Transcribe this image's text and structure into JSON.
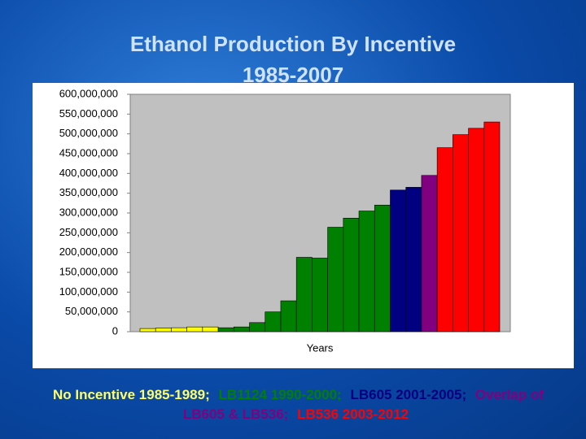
{
  "chart_data": {
    "type": "bar",
    "title": "Ethanol Production By Incentive",
    "subtitle": "1985-2007",
    "x_label": "Years",
    "categories": [
      null,
      null,
      null,
      null,
      null,
      null,
      null,
      null,
      null,
      null,
      null,
      null,
      null,
      null,
      null,
      null,
      null,
      null,
      null,
      null,
      null,
      null,
      null
    ],
    "values": [
      8000000,
      9000000,
      10000000,
      12000000,
      12000000,
      10000000,
      12000000,
      23000000,
      50000000,
      78000000,
      188000000,
      186000000,
      264000000,
      287000000,
      305000000,
      320000000,
      358000000,
      365000000,
      395000000,
      465000000,
      498000000,
      514000000,
      530000000
    ],
    "colors": [
      "#ffff00",
      "#ffff00",
      "#ffff00",
      "#ffff00",
      "#ffff00",
      "#008000",
      "#008000",
      "#008000",
      "#008000",
      "#008000",
      "#008000",
      "#008000",
      "#008000",
      "#008000",
      "#008000",
      "#008000",
      "#000080",
      "#000080",
      "#800080",
      "#ff0000",
      "#ff0000",
      "#ff0000",
      "#ff0000"
    ],
    "ylim": [
      0,
      600000000
    ],
    "yticks": [
      0,
      {
        "value": 50000000,
        "label": "50,000,000"
      },
      {
        "value": 100000000,
        "label": "100,000,000"
      },
      {
        "value": 150000000,
        "label": "150,000,000"
      },
      {
        "value": 200000000,
        "label": "200,000,000"
      },
      {
        "value": 250000000,
        "label": "250,000,000"
      },
      {
        "value": 300000000,
        "label": "300,000,000"
      },
      {
        "value": 350000000,
        "label": "350,000,000"
      },
      {
        "value": 400000000,
        "label": "400,000,000"
      },
      {
        "value": 450000000,
        "label": "450,000,000"
      },
      {
        "value": 500000000,
        "label": "500,000,000"
      },
      {
        "value": 550000000,
        "label": "550,000,000"
      },
      {
        "value": 600000000,
        "label": "600,000,000"
      }
    ],
    "caption": [
      {
        "text": "No Incentive 1985-1989;",
        "color": "#ffff66"
      },
      {
        "text": "LB1124 1990-2000;",
        "color": "#008000"
      },
      {
        "text": "LB605 2001-2005;",
        "color": "#000080"
      },
      {
        "text": "Overlap of LB605 & LB536;",
        "color": "#800080"
      },
      {
        "text": "LB536 2003-2012",
        "color": "#ff0000"
      }
    ]
  }
}
